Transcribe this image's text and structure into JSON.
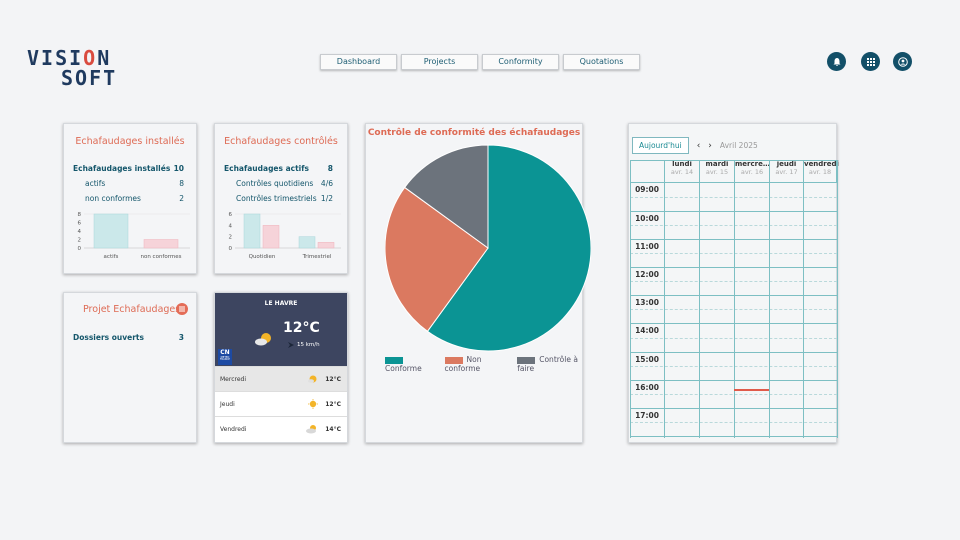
{
  "logo": {
    "line1_a": "VISI",
    "line1_b": "O",
    "line1_c": "N",
    "line2": "SOFT"
  },
  "nav": [
    {
      "label": "Dashboard"
    },
    {
      "label": "Projects"
    },
    {
      "label": "Conformity"
    },
    {
      "label": "Quotations"
    }
  ],
  "installed": {
    "title": "Echafaudages installés",
    "total_label": "Echafaudages installés",
    "total_value": "10",
    "actifs_label": "actifs",
    "actifs_value": "8",
    "nonconf_label": "non conformes",
    "nonconf_value": "2",
    "chart": {
      "yticks": [
        "8",
        "6",
        "4",
        "2",
        "0"
      ],
      "categories": [
        "actifs",
        "non conformes"
      ],
      "values": [
        8,
        2
      ]
    }
  },
  "controles": {
    "title": "Echafaudages contrôlés",
    "actifs_label": "Echafaudages actifs",
    "actifs_value": "8",
    "quot_label": "Contrôles quotidiens",
    "quot_value": "4/6",
    "trim_label": "Contrôles trimestriels",
    "trim_value": "1/2",
    "chart": {
      "yticks": [
        "6",
        "4",
        "2",
        "0"
      ],
      "categories": [
        "Quotidien",
        "Trimestriel"
      ],
      "series": [
        {
          "values": [
            6,
            2
          ]
        },
        {
          "values": [
            4,
            1
          ]
        }
      ]
    }
  },
  "projet": {
    "title": "Projet Echafaudages",
    "dossiers_label": "Dossiers ouverts",
    "dossiers_value": "3"
  },
  "weather": {
    "city": "LE HAVRE",
    "temp": "12°C",
    "wind": "15 km/h",
    "badge_line1": "CN",
    "badge_line2": "METEO FRANCE",
    "days": [
      {
        "day": "Mercredi",
        "temp": "12°C",
        "icon": "sun-cloud-icon"
      },
      {
        "day": "Jeudi",
        "temp": "12°C",
        "icon": "sun-icon"
      },
      {
        "day": "Vendredi",
        "temp": "14°C",
        "icon": "cloud-sun-icon"
      }
    ]
  },
  "pie": {
    "title": "Contrôle de conformité des échafaudages",
    "legend": [
      "Conforme",
      "Non conforme",
      "Contrôle à faire"
    ]
  },
  "chart_data": {
    "type": "pie",
    "title": "Contrôle de conformité des échafaudages",
    "categories": [
      "Conforme",
      "Non conforme",
      "Contrôle à faire"
    ],
    "values": [
      60,
      25,
      15
    ],
    "colors": [
      "#0b9494",
      "#db7960",
      "#6c737c"
    ],
    "legend_position": "bottom"
  },
  "calendar": {
    "today_label": "Aujourd'hui",
    "month": "Avril 2025",
    "days": [
      {
        "name": "lundi",
        "date": "avr. 14"
      },
      {
        "name": "mardi",
        "date": "avr. 15"
      },
      {
        "name": "mercre…",
        "date": "avr. 16"
      },
      {
        "name": "jeudi",
        "date": "avr. 17"
      },
      {
        "name": "vendredi",
        "date": "avr. 18"
      }
    ],
    "hours": [
      "09:00",
      "10:00",
      "11:00",
      "12:00",
      "13:00",
      "14:00",
      "15:00",
      "16:00",
      "17:00"
    ]
  },
  "colors": {
    "accent": "#de6b55",
    "teal": "#0b9494",
    "navy": "#124f68"
  }
}
